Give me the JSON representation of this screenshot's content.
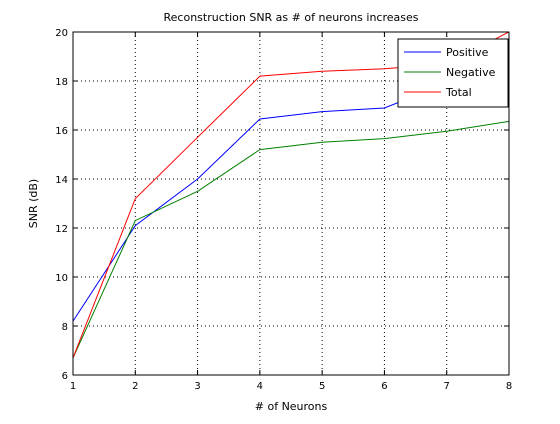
{
  "chart_data": {
    "type": "line",
    "title": "Reconstruction SNR as # of neurons increases",
    "xlabel": "# of Neurons",
    "ylabel": "SNR (dB)",
    "xlim": [
      1,
      8
    ],
    "ylim": [
      6,
      20
    ],
    "xticks": [
      1,
      2,
      3,
      4,
      5,
      6,
      7,
      8
    ],
    "yticks": [
      6,
      8,
      10,
      12,
      14,
      16,
      18,
      20
    ],
    "grid": true,
    "legend_position": "top-right",
    "x": [
      1,
      2,
      3,
      4,
      5,
      6,
      7,
      8
    ],
    "series": [
      {
        "name": "Positive",
        "color": "#0000ff",
        "values": [
          8.2,
          12.1,
          14.0,
          16.45,
          16.75,
          16.9,
          17.9,
          18.1
        ]
      },
      {
        "name": "Negative",
        "color": "#008000",
        "values": [
          6.7,
          12.3,
          13.5,
          15.2,
          15.5,
          15.65,
          15.95,
          16.35
        ]
      },
      {
        "name": "Total",
        "color": "#ff0000",
        "values": [
          6.7,
          13.2,
          15.7,
          18.2,
          18.4,
          18.5,
          18.7,
          20.0
        ]
      }
    ]
  }
}
